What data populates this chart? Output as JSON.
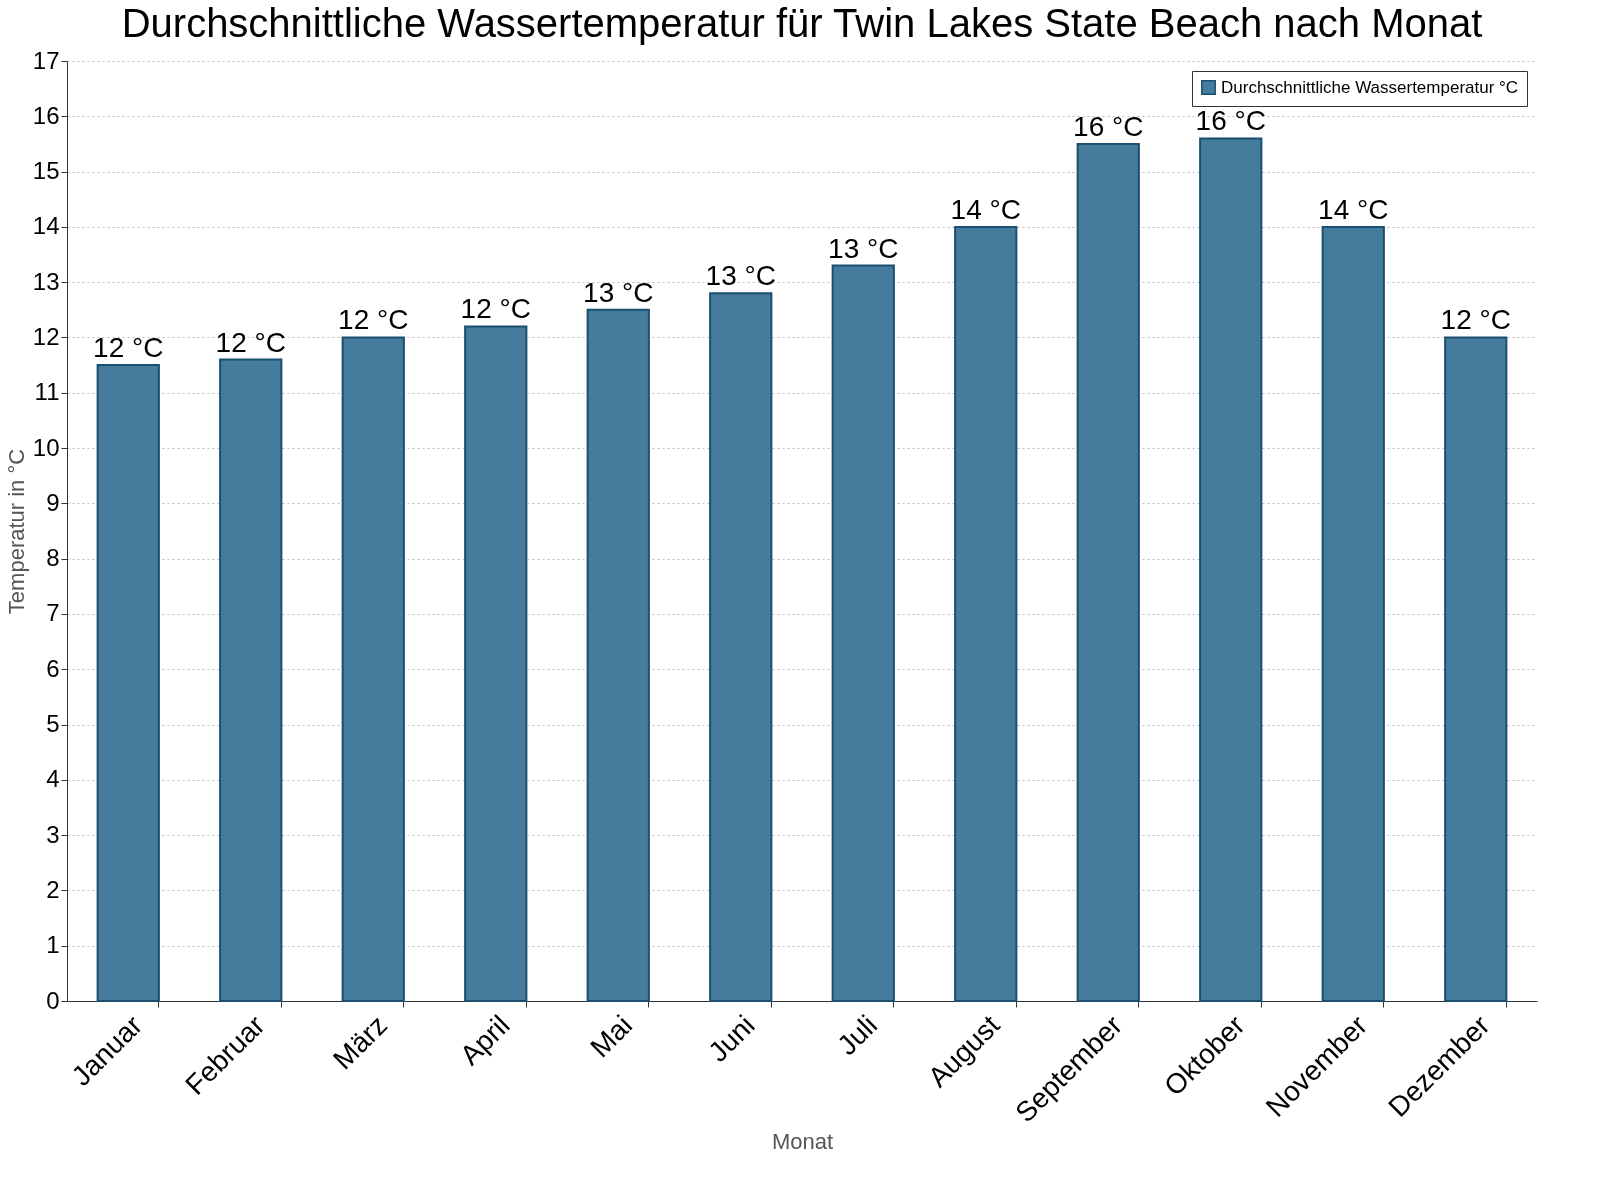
{
  "chart_data": {
    "type": "bar",
    "title": "Durchschnittliche Wassertemperatur für Twin Lakes State Beach nach Monat",
    "xlabel": "Monat",
    "ylabel": "Temperatur in °C",
    "categories": [
      "Januar",
      "Februar",
      "März",
      "April",
      "Mai",
      "Juni",
      "Juli",
      "August",
      "September",
      "Oktober",
      "November",
      "Dezember"
    ],
    "series": [
      {
        "name": "Durchschnittliche Wassertemperatur °C",
        "color": "#457b9d",
        "values": [
          11.5,
          11.6,
          12.0,
          12.2,
          12.5,
          12.8,
          13.3,
          14.0,
          15.5,
          15.6,
          14.0,
          12.0
        ],
        "value_labels": [
          "12 °C",
          "12 °C",
          "12 °C",
          "12 °C",
          "13 °C",
          "13 °C",
          "13 °C",
          "14 °C",
          "16 °C",
          "16 °C",
          "14 °C",
          "12 °C"
        ]
      }
    ],
    "ylim": [
      0,
      17
    ],
    "yticks": [
      0,
      1,
      2,
      3,
      4,
      5,
      6,
      7,
      8,
      9,
      10,
      11,
      12,
      13,
      14,
      15,
      16,
      17
    ],
    "grid": "y",
    "legend": "top right"
  }
}
